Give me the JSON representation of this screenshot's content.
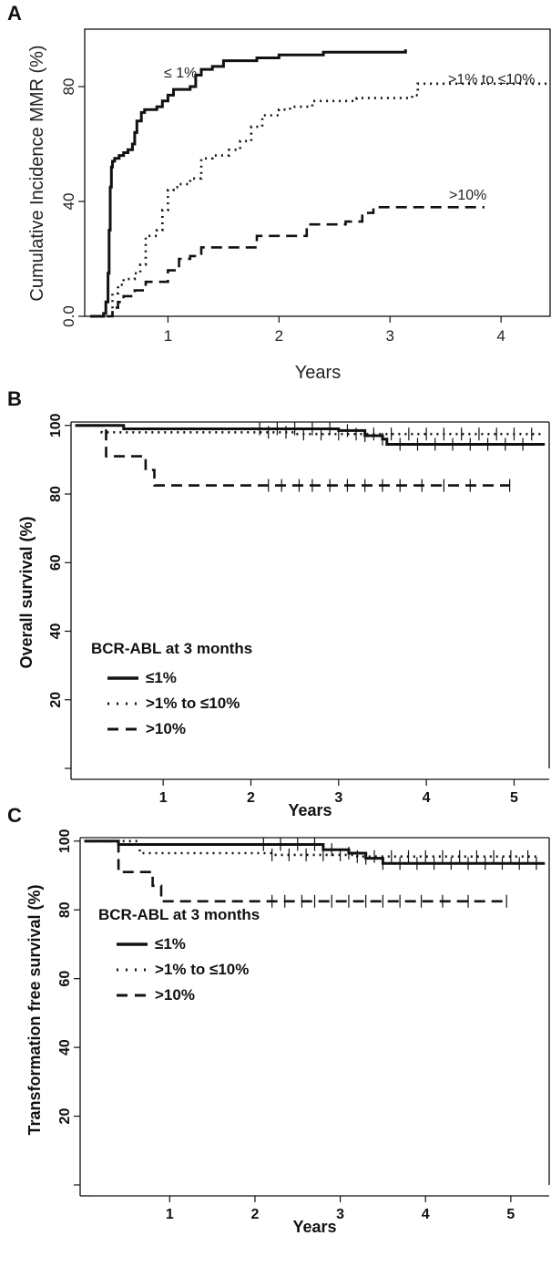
{
  "colors": {
    "line": "#111111",
    "background": "#ffffff"
  },
  "chart_data": [
    {
      "panel": "A",
      "type": "line",
      "xlabel": "Years",
      "ylabel": "Cumulative Incidence MMR (%)",
      "xlim": [
        0.25,
        4.45
      ],
      "ylim": [
        0,
        100
      ],
      "xticks": [
        "1",
        "2",
        "3",
        "4"
      ],
      "yticks": [
        "0.0",
        "40",
        "80"
      ],
      "grid": false,
      "series": [
        {
          "name": "≤ 1%",
          "style": "solid",
          "x": [
            0.3,
            0.42,
            0.44,
            0.46,
            0.47,
            0.48,
            0.49,
            0.5,
            0.52,
            0.56,
            0.6,
            0.64,
            0.68,
            0.7,
            0.72,
            0.76,
            0.79,
            0.85,
            0.9,
            0.95,
            1.0,
            1.05,
            1.1,
            1.2,
            1.25,
            1.3,
            1.4,
            1.5,
            1.6,
            1.8,
            2.0,
            2.4,
            3.14
          ],
          "y": [
            0,
            1,
            5,
            15,
            30,
            45,
            52,
            54,
            55,
            56,
            57,
            58,
            60,
            64,
            68,
            71,
            72,
            72,
            73,
            75,
            77,
            79,
            79,
            80,
            84,
            86,
            87,
            89,
            89,
            90,
            91,
            92,
            93
          ]
        },
        {
          "name": ">1% to ≤10%",
          "style": "dotted",
          "x": [
            0.4,
            0.5,
            0.55,
            0.6,
            0.7,
            0.75,
            0.8,
            0.9,
            0.95,
            1.0,
            1.05,
            1.1,
            1.2,
            1.3,
            1.4,
            1.55,
            1.65,
            1.75,
            1.85,
            2.0,
            2.1,
            2.3,
            2.5,
            2.7,
            3.2,
            3.25,
            4.45
          ],
          "y": [
            0,
            8,
            11,
            13,
            15,
            18,
            28,
            30,
            37,
            44,
            45,
            46,
            48,
            55,
            56,
            58,
            61,
            66,
            70,
            72,
            73,
            75,
            75,
            76,
            77,
            81,
            81
          ]
        },
        {
          "name": ">10%",
          "style": "dashed",
          "x": [
            0.45,
            0.5,
            0.55,
            0.6,
            0.7,
            0.8,
            1.0,
            1.1,
            1.2,
            1.3,
            1.5,
            1.8,
            2.0,
            2.25,
            2.4,
            2.6,
            2.75,
            2.85,
            3.5,
            3.85
          ],
          "y": [
            0,
            3,
            5,
            7,
            9,
            12,
            16,
            20,
            21,
            24,
            24,
            28,
            28,
            32,
            32,
            33,
            36,
            38,
            38,
            38
          ]
        }
      ]
    },
    {
      "panel": "B",
      "type": "line",
      "xlabel": "Years",
      "ylabel": "Overall survival (%)",
      "xlim": [
        -0.05,
        5.4
      ],
      "ylim": [
        0,
        101
      ],
      "xticks": [
        "1",
        "2",
        "3",
        "4",
        "5"
      ],
      "yticks": [
        "20",
        "40",
        "60",
        "80",
        "100"
      ],
      "grid": false,
      "legend_title": "BCR-ABL at 3 months",
      "legend_placement": "lower-left",
      "series": [
        {
          "name": "≤1%",
          "style": "solid",
          "x": [
            0,
            0.5,
            0.55,
            2.0,
            3.0,
            3.3,
            3.5,
            3.55,
            4.0,
            5.35
          ],
          "y": [
            100,
            100,
            99,
            99,
            98.5,
            97,
            96,
            94.5,
            94.5,
            94.5
          ],
          "censor_x": [
            2.1,
            2.3,
            2.5,
            2.7,
            2.9,
            3.1,
            3.3,
            3.5,
            3.7,
            3.9,
            4.1,
            4.3,
            4.5,
            4.7,
            4.9,
            5.1
          ]
        },
        {
          "name": ">1% to ≤10%",
          "style": "dotted",
          "x": [
            0,
            0.25,
            0.3,
            2.2,
            2.5,
            5.35
          ],
          "y": [
            100,
            100,
            98,
            98,
            97.5,
            97.5
          ],
          "censor_x": [
            2.2,
            2.4,
            2.6,
            2.8,
            3.0,
            3.2,
            3.4,
            3.6,
            3.8,
            4.0,
            4.2,
            4.4,
            4.6,
            4.8,
            5.0,
            5.2
          ]
        },
        {
          "name": ">10%",
          "style": "dashed",
          "x": [
            0,
            0.3,
            0.35,
            0.55,
            0.8,
            0.9,
            4.95
          ],
          "y": [
            100,
            100,
            91,
            91,
            87,
            82.5,
            82.5
          ],
          "censor_x": [
            2.2,
            2.35,
            2.55,
            2.7,
            2.9,
            3.1,
            3.3,
            3.5,
            3.7,
            3.95,
            4.2,
            4.5,
            4.95
          ]
        }
      ]
    },
    {
      "panel": "C",
      "type": "line",
      "xlabel": "Years",
      "ylabel": "Transformation free survival (%)",
      "xlim": [
        -0.05,
        5.45
      ],
      "ylim": [
        0,
        101
      ],
      "xticks": [
        "1",
        "2",
        "3",
        "4",
        "5"
      ],
      "yticks": [
        "20",
        "40",
        "60",
        "80",
        "100"
      ],
      "grid": false,
      "legend_title": "BCR-ABL at 3 months",
      "legend_placement": "lower-left",
      "series": [
        {
          "name": "≤1%",
          "style": "solid",
          "x": [
            0,
            0.3,
            0.4,
            2.0,
            2.8,
            3.1,
            3.3,
            3.5,
            4.0,
            5.4
          ],
          "y": [
            100,
            100,
            99,
            99,
            97.5,
            96.5,
            95,
            93.5,
            93.5,
            93.5
          ],
          "censor_x": [
            2.1,
            2.3,
            2.5,
            2.7,
            2.9,
            3.1,
            3.3,
            3.5,
            3.7,
            3.9,
            4.1,
            4.3,
            4.5,
            4.7,
            4.9,
            5.1,
            5.3
          ]
        },
        {
          "name": ">1% to ≤10%",
          "style": "dotted",
          "x": [
            0,
            0.6,
            0.65,
            2.0,
            2.2,
            3.0,
            3.2,
            5.35
          ],
          "y": [
            100,
            100,
            96.5,
            96.5,
            96,
            96,
            95.5,
            95.5
          ],
          "censor_x": [
            2.2,
            2.4,
            2.6,
            2.8,
            3.0,
            3.2,
            3.4,
            3.6,
            3.8,
            4.0,
            4.2,
            4.4,
            4.6,
            4.8,
            5.0,
            5.2
          ]
        },
        {
          "name": ">10%",
          "style": "dashed",
          "x": [
            0,
            0.35,
            0.4,
            0.7,
            0.8,
            0.9,
            4.95
          ],
          "y": [
            100,
            100,
            91,
            91,
            87,
            82.5,
            82.5
          ],
          "censor_x": [
            2.2,
            2.35,
            2.55,
            2.7,
            2.9,
            3.1,
            3.3,
            3.5,
            3.7,
            3.95,
            4.2,
            4.5,
            4.95
          ]
        }
      ]
    }
  ]
}
